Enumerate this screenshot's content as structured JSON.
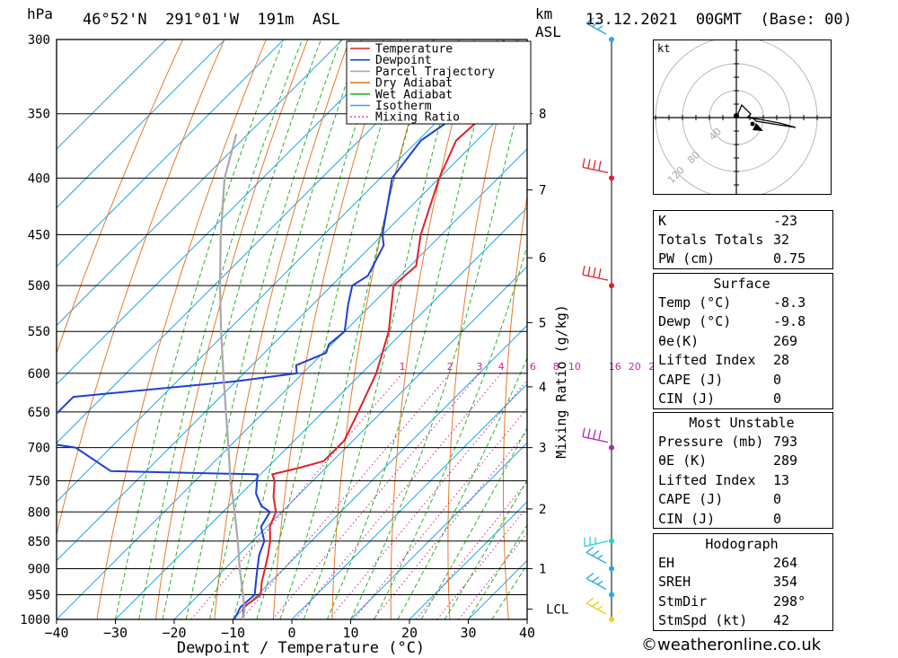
{
  "header": {
    "location": "46°52'N  291°01'W  191m  ASL",
    "datetime": "13.12.2021  00GMT  (Base: 00)",
    "hpa_unit": "hPa",
    "km_unit": "km",
    "asl_unit": "ASL"
  },
  "chart_data": {
    "type": "line",
    "subtype": "skew-T log-P",
    "xlabel": "Dewpoint / Temperature (°C)",
    "ylabel": "hPa",
    "right_label": "Mixing Ratio (g/kg)",
    "x_ticks": [
      -40,
      -30,
      -20,
      -10,
      0,
      10,
      20,
      30,
      40
    ],
    "xlim": [
      -40,
      40
    ],
    "pressure_ticks": [
      300,
      350,
      400,
      450,
      500,
      550,
      600,
      650,
      700,
      750,
      800,
      850,
      900,
      950,
      1000
    ],
    "ylim": [
      1000,
      300
    ],
    "height_ticks": [
      {
        "label": "8",
        "p": 350
      },
      {
        "label": "7",
        "p": 410
      },
      {
        "label": "6",
        "p": 472
      },
      {
        "label": "5",
        "p": 540
      },
      {
        "label": "4",
        "p": 617
      },
      {
        "label": "3",
        "p": 700
      },
      {
        "label": "2",
        "p": 795
      },
      {
        "label": "1",
        "p": 900
      },
      {
        "label": "LCL",
        "p": 979
      }
    ],
    "mixing_ratio_labels": [
      "1",
      "2",
      "3",
      "4",
      "6",
      "8",
      "10",
      "16",
      "20",
      "25"
    ],
    "mixing_ratio_values": [
      1,
      2,
      3,
      4,
      6,
      8,
      10,
      16,
      20,
      25
    ],
    "legend": [
      "Temperature",
      "Dewpoint",
      "Parcel Trajectory",
      "Dry Adiabat",
      "Wet Adiabat",
      "Isotherm",
      "Mixing Ratio"
    ],
    "colors": {
      "temperature": "#e0202a",
      "dewpoint": "#1f3fd6",
      "parcel": "#a9a9a9",
      "dry_adiabat": "#e87a2a",
      "wet_adiabat": "#29b52b",
      "isotherm": "#28a6e6",
      "mixing_ratio": "#d81b9a"
    },
    "series": [
      {
        "name": "Temperature",
        "points": [
          [
            1000,
            -8.3
          ],
          [
            975,
            -10.3
          ],
          [
            950,
            -9.5
          ],
          [
            925,
            -11.5
          ],
          [
            900,
            -13.2
          ],
          [
            875,
            -15.0
          ],
          [
            850,
            -17.0
          ],
          [
            825,
            -19.5
          ],
          [
            800,
            -21.0
          ],
          [
            775,
            -24.0
          ],
          [
            750,
            -26.5
          ],
          [
            740,
            -28.0
          ],
          [
            730,
            -24.5
          ],
          [
            720,
            -21.5
          ],
          [
            700,
            -21.5
          ],
          [
            690,
            -21.5
          ],
          [
            650,
            -24.0
          ],
          [
            600,
            -27.5
          ],
          [
            550,
            -32.5
          ],
          [
            500,
            -39.5
          ],
          [
            480,
            -39.0
          ],
          [
            450,
            -43.5
          ],
          [
            400,
            -50.0
          ],
          [
            370,
            -53.5
          ],
          [
            350,
            -53.0
          ],
          [
            340,
            -52.5
          ],
          [
            320,
            -55.0
          ],
          [
            300,
            -57.5
          ]
        ]
      },
      {
        "name": "Dewpoint",
        "points": [
          [
            1000,
            -9.8
          ],
          [
            975,
            -10.8
          ],
          [
            950,
            -10.5
          ],
          [
            925,
            -12.5
          ],
          [
            900,
            -14.5
          ],
          [
            875,
            -16.5
          ],
          [
            850,
            -18.0
          ],
          [
            825,
            -21.0
          ],
          [
            800,
            -22.0
          ],
          [
            790,
            -24.5
          ],
          [
            770,
            -27.5
          ],
          [
            740,
            -30.5
          ],
          [
            735,
            -56.0
          ],
          [
            700,
            -66.0
          ],
          [
            690,
            -75.0
          ],
          [
            630,
            -75.0
          ],
          [
            610,
            -50.0
          ],
          [
            600,
            -41.0
          ],
          [
            590,
            -42.5
          ],
          [
            575,
            -39.5
          ],
          [
            565,
            -40.5
          ],
          [
            550,
            -40.0
          ],
          [
            520,
            -44.0
          ],
          [
            500,
            -46.5
          ],
          [
            490,
            -45.5
          ],
          [
            460,
            -48.0
          ],
          [
            450,
            -50.0
          ],
          [
            400,
            -58.0
          ],
          [
            370,
            -59.5
          ],
          [
            350,
            -57.5
          ],
          [
            330,
            -60.0
          ],
          [
            320,
            -60.5
          ],
          [
            300,
            -62.5
          ]
        ]
      },
      {
        "name": "Parcel Trajectory",
        "points": [
          [
            1000,
            -8.3
          ],
          [
            979,
            -9.8
          ],
          [
            950,
            -12.5
          ],
          [
            900,
            -17.5
          ],
          [
            850,
            -22.5
          ],
          [
            800,
            -28.0
          ],
          [
            750,
            -34.0
          ],
          [
            700,
            -40.0
          ],
          [
            650,
            -46.5
          ],
          [
            600,
            -53.5
          ],
          [
            550,
            -61.0
          ],
          [
            500,
            -69.0
          ],
          [
            450,
            -77.5
          ],
          [
            400,
            -86.5
          ],
          [
            365,
            -92.0
          ]
        ]
      }
    ],
    "winds": [
      {
        "p": 1000,
        "color": "#e8d020"
      },
      {
        "p": 950,
        "color": "#28a6e6"
      },
      {
        "p": 900,
        "color": "#28a6e6"
      },
      {
        "p": 850,
        "color": "#28cfcf"
      },
      {
        "p": 700,
        "color": "#b020c0"
      },
      {
        "p": 500,
        "color": "#e0202a"
      },
      {
        "p": 400,
        "color": "#e0202a"
      },
      {
        "p": 300,
        "color": "#28a6e6"
      }
    ]
  },
  "hodograph": {
    "unit": "kt",
    "ring_labels": [
      "40",
      "80",
      "120"
    ]
  },
  "indices": [
    {
      "label": "K",
      "value": "-23"
    },
    {
      "label": "Totals Totals",
      "value": "32"
    },
    {
      "label": "PW (cm)",
      "value": "0.75"
    }
  ],
  "surface": {
    "title": "Surface",
    "rows": [
      {
        "label": "Temp (°C)",
        "value": "-8.3"
      },
      {
        "label": "Dewp (°C)",
        "value": "-9.8"
      },
      {
        "label": "θe(K)",
        "value": "269"
      },
      {
        "label": "Lifted Index",
        "value": "28"
      },
      {
        "label": "CAPE (J)",
        "value": "0"
      },
      {
        "label": "CIN (J)",
        "value": "0"
      }
    ]
  },
  "most_unstable": {
    "title": "Most Unstable",
    "rows": [
      {
        "label": "Pressure (mb)",
        "value": "793"
      },
      {
        "label": "θE (K)",
        "value": "289"
      },
      {
        "label": "Lifted Index",
        "value": "13"
      },
      {
        "label": "CAPE (J)",
        "value": "0"
      },
      {
        "label": "CIN (J)",
        "value": "0"
      }
    ]
  },
  "hodograph_stats": {
    "title": "Hodograph",
    "rows": [
      {
        "label": "EH",
        "value": "264"
      },
      {
        "label": "SREH",
        "value": "354"
      },
      {
        "label": "StmDir",
        "value": "298°"
      },
      {
        "label": "StmSpd (kt)",
        "value": "42"
      }
    ]
  },
  "footer": {
    "copyright": "©weatheronline.co.uk"
  }
}
